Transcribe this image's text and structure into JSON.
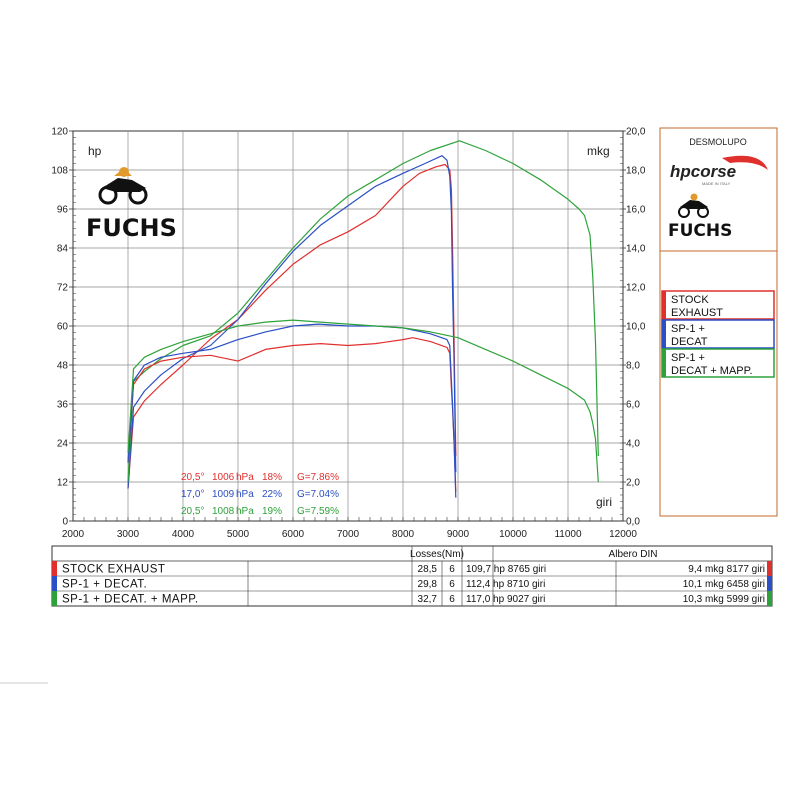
{
  "colors": {
    "red": "#e0302e",
    "blue": "#2b4fc4",
    "green": "#2ea23a",
    "frame": "#c06a2a"
  },
  "units": {
    "left": "hp",
    "right": "mkg",
    "x": "giri"
  },
  "brand": {
    "left_logo": "FUCHS",
    "right_title": "DESMOLUPO",
    "right_logo1": "hpcorse",
    "right_logo2": "FUCHS",
    "right_logo1_sub": "MADE IN ITALY"
  },
  "legend": [
    {
      "line1": "STOCK",
      "line2": "EXHAUST",
      "color": "#e0302e"
    },
    {
      "line1": "SP-1 +",
      "line2": "DECAT",
      "color": "#2b4fc4"
    },
    {
      "line1": "SP-1 +",
      "line2": "DECAT + MAPP.",
      "color": "#2ea23a"
    }
  ],
  "conditions": [
    {
      "temp": "20,5°",
      "pressure": "1006",
      "unit": "hPa",
      "humidity": "18%",
      "g": "G=7.86%",
      "color": "#e0302e"
    },
    {
      "temp": "17,0°",
      "pressure": "1009",
      "unit": "hPa",
      "humidity": "22%",
      "g": "G=7.04%",
      "color": "#2b4fc4"
    },
    {
      "temp": "20,5°",
      "pressure": "1008",
      "unit": "hPa",
      "humidity": "19%",
      "g": "G=7.59%",
      "color": "#2ea23a"
    }
  ],
  "table": {
    "header_losses": "Losses(Nm)",
    "header_albero": "Albero DIN",
    "rows": [
      {
        "name": "STOCK EXHAUST",
        "losses": "28,5",
        "n": "6",
        "hp": "109,7 hp 8765 giri",
        "mkg": "9,4 mkg 8177 giri",
        "color": "#e0302e"
      },
      {
        "name": "SP-1 + DECAT.",
        "losses": "29,8",
        "n": "6",
        "hp": "112,4 hp 8710 giri",
        "mkg": "10,1 mkg 6458 giri",
        "color": "#2b4fc4"
      },
      {
        "name": "SP-1 + DECAT. + MAPP.",
        "losses": "32,7",
        "n": "6",
        "hp": "117,0 hp 9027 giri",
        "mkg": "10,3 mkg 5999 giri",
        "color": "#2ea23a"
      }
    ]
  },
  "chart_data": {
    "type": "line",
    "title": "",
    "xlabel": "giri",
    "ylabel_left": "hp",
    "ylabel_right": "mkg",
    "xlim": [
      2000,
      12000
    ],
    "ylim_left": [
      0,
      120
    ],
    "ylim_right": [
      0,
      20
    ],
    "x_ticks": [
      2000,
      3000,
      4000,
      5000,
      6000,
      7000,
      8000,
      9000,
      10000,
      11000,
      12000
    ],
    "y_ticks_left": [
      "0",
      "12",
      "24",
      "36",
      "48",
      "60",
      "72",
      "84",
      "96",
      "108",
      "120"
    ],
    "y_ticks_right": [
      "0,0",
      "2,0",
      "4,0",
      "6,0",
      "8,0",
      "10,0",
      "12,0",
      "14,0",
      "16,0",
      "18,0",
      "20,0"
    ],
    "grid": true,
    "legend_position": "right",
    "series": [
      {
        "name": "STOCK EXHAUST",
        "quantity": "power",
        "axis": "left",
        "color": "#e0302e",
        "x": [
          3000,
          3100,
          3300,
          3600,
          4000,
          4500,
          5000,
          5500,
          6000,
          6500,
          7000,
          7500,
          8000,
          8300,
          8600,
          8765,
          8850,
          8880,
          8900,
          8930,
          8960
        ],
        "y": [
          10,
          32,
          37,
          42,
          48,
          56,
          62,
          71,
          79,
          85,
          89,
          94,
          103,
          107,
          109,
          109.7,
          108,
          102,
          85,
          55,
          20
        ]
      },
      {
        "name": "SP-1 + DECAT.",
        "quantity": "power",
        "axis": "left",
        "color": "#2b4fc4",
        "x": [
          3000,
          3100,
          3300,
          3600,
          4000,
          4500,
          5000,
          5500,
          6000,
          6500,
          7000,
          7500,
          8000,
          8400,
          8710,
          8800,
          8850,
          8880,
          8900,
          8930,
          8960
        ],
        "y": [
          10,
          35,
          40,
          45,
          50,
          54,
          62,
          73,
          83,
          91,
          97,
          103,
          107,
          110,
          112.4,
          111,
          106,
          95,
          72,
          48,
          15
        ]
      },
      {
        "name": "SP-1 + DECAT. + MAPP.",
        "quantity": "power",
        "axis": "left",
        "color": "#2ea23a",
        "x": [
          3000,
          3100,
          3300,
          3600,
          4000,
          4500,
          5000,
          5500,
          6000,
          6500,
          7000,
          7500,
          8000,
          8500,
          9027,
          9500,
          10000,
          10500,
          11000,
          11200,
          11300,
          11400,
          11450,
          11500,
          11550
        ],
        "y": [
          12,
          43,
          46,
          50,
          54,
          57,
          64,
          74,
          84,
          93,
          100,
          105,
          110,
          114,
          117,
          114,
          110,
          105,
          99,
          96,
          94,
          88,
          75,
          55,
          20
        ]
      },
      {
        "name": "STOCK EXHAUST",
        "quantity": "torque",
        "axis": "right",
        "color": "#e0302e",
        "x": [
          3000,
          3100,
          3300,
          3600,
          4000,
          4500,
          5000,
          5500,
          6000,
          6500,
          7000,
          7500,
          8000,
          8177,
          8500,
          8800,
          8850,
          8880,
          8900,
          8930,
          8960
        ],
        "y": [
          3.0,
          7.0,
          7.8,
          8.2,
          8.4,
          8.5,
          8.2,
          8.8,
          9.0,
          9.1,
          9.0,
          9.1,
          9.3,
          9.4,
          9.2,
          8.9,
          8.6,
          6.8,
          5.8,
          4.0,
          1.5
        ]
      },
      {
        "name": "SP-1 + DECAT.",
        "quantity": "torque",
        "axis": "right",
        "color": "#2b4fc4",
        "x": [
          3000,
          3100,
          3300,
          3600,
          4000,
          4500,
          5000,
          5500,
          6000,
          6458,
          7000,
          7500,
          8000,
          8500,
          8800,
          8850,
          8880,
          8900,
          8930,
          8960
        ],
        "y": [
          3.0,
          7.2,
          8.0,
          8.4,
          8.6,
          8.8,
          9.3,
          9.7,
          10.0,
          10.1,
          10.0,
          10.0,
          9.9,
          9.6,
          9.3,
          9.0,
          7.2,
          6.0,
          4.0,
          1.2
        ]
      },
      {
        "name": "SP-1 + DECAT. + MAPP.",
        "quantity": "torque",
        "axis": "right",
        "color": "#2ea23a",
        "x": [
          3000,
          3100,
          3300,
          3600,
          4000,
          4500,
          5000,
          5500,
          5999,
          6500,
          7000,
          7500,
          8000,
          8500,
          9000,
          9500,
          10000,
          10500,
          11000,
          11300,
          11400,
          11450,
          11500,
          11550
        ],
        "y": [
          3.5,
          7.8,
          8.4,
          8.8,
          9.2,
          9.6,
          10.0,
          10.2,
          10.3,
          10.2,
          10.1,
          10.0,
          9.9,
          9.7,
          9.4,
          8.8,
          8.2,
          7.5,
          6.8,
          6.2,
          5.6,
          5.0,
          4.2,
          2.0
        ]
      }
    ]
  }
}
